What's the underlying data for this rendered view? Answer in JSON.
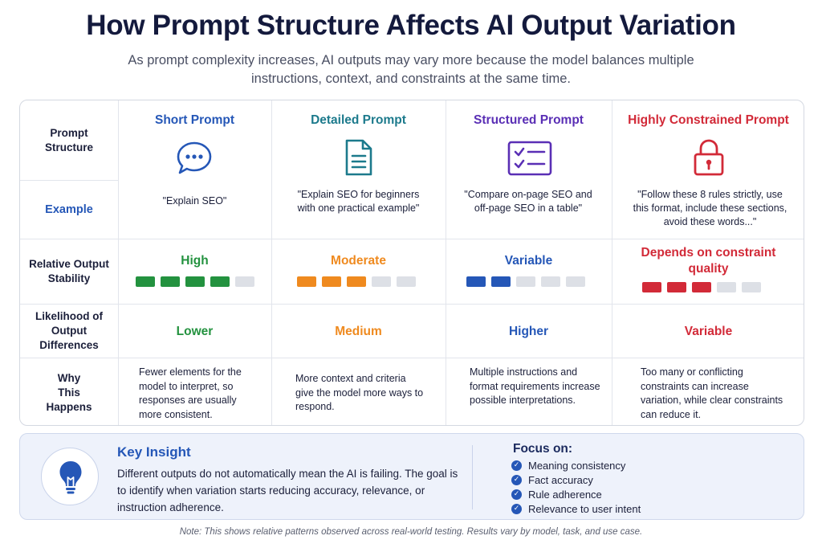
{
  "title": "How Prompt Structure Affects AI Output Variation",
  "subtitle": "As prompt complexity increases, AI outputs may vary more because the model balances multiple instructions, context, and constraints at the same time.",
  "rows": {
    "structure": "Prompt Structure",
    "example": "Example",
    "stability": "Relative Output Stability",
    "likelihood": "Likelihood of Output Differences",
    "why": "Why This Happens"
  },
  "columns": [
    {
      "name": "Short Prompt",
      "icon": "chat-bubble-icon",
      "color": "#2557b7",
      "example": "\"Explain SEO\"",
      "stability_label": "High",
      "stability_color": "#23923f",
      "stability_filled": 4,
      "stability_total": 5,
      "likelihood": "Lower",
      "likelihood_color": "#23923f",
      "why": "Fewer elements for the model to interpret, so responses are usually more consistent."
    },
    {
      "name": "Detailed Prompt",
      "icon": "document-icon",
      "color": "#1c7a8c",
      "example": "\"Explain SEO for beginners with one practical example\"",
      "stability_label": "Moderate",
      "stability_color": "#ef8a1f",
      "stability_filled": 3,
      "stability_total": 5,
      "likelihood": "Medium",
      "likelihood_color": "#ef8a1f",
      "why": "More context and criteria give the model more ways to respond."
    },
    {
      "name": "Structured Prompt",
      "icon": "checklist-icon",
      "color": "#5a2fb5",
      "example": "\"Compare on-page SEO and off-page SEO in a table\"",
      "stability_label": "Variable",
      "stability_color": "#2557b7",
      "stability_filled": 2,
      "stability_total": 5,
      "likelihood": "Higher",
      "likelihood_color": "#2557b7",
      "why": "Multiple instructions and format requirements increase possible interpretations."
    },
    {
      "name": "Highly Constrained Prompt",
      "icon": "padlock-icon",
      "color": "#d22a38",
      "example": "\"Follow these 8 rules strictly, use this format, include these sections, avoid these words...\"",
      "stability_label": "Depends on constraint quality",
      "stability_color": "#d22a38",
      "stability_filled": 3,
      "stability_total": 5,
      "likelihood": "Variable",
      "likelihood_color": "#d22a38",
      "why": "Too many or conflicting constraints can increase variation, while clear constraints can reduce it."
    }
  ],
  "insight": {
    "icon": "lightbulb-icon",
    "title": "Key Insight",
    "body": "Different outputs do not automatically mean the AI is failing. The goal is to identify when variation starts reducing accuracy, relevance, or instruction adherence.",
    "focus_title": "Focus on:",
    "focus_items": [
      "Meaning consistency",
      "Fact accuracy",
      "Rule adherence",
      "Relevance to user intent"
    ]
  },
  "note": "Note: This shows relative patterns observed across real-world testing. Results vary by model, task, and use case."
}
